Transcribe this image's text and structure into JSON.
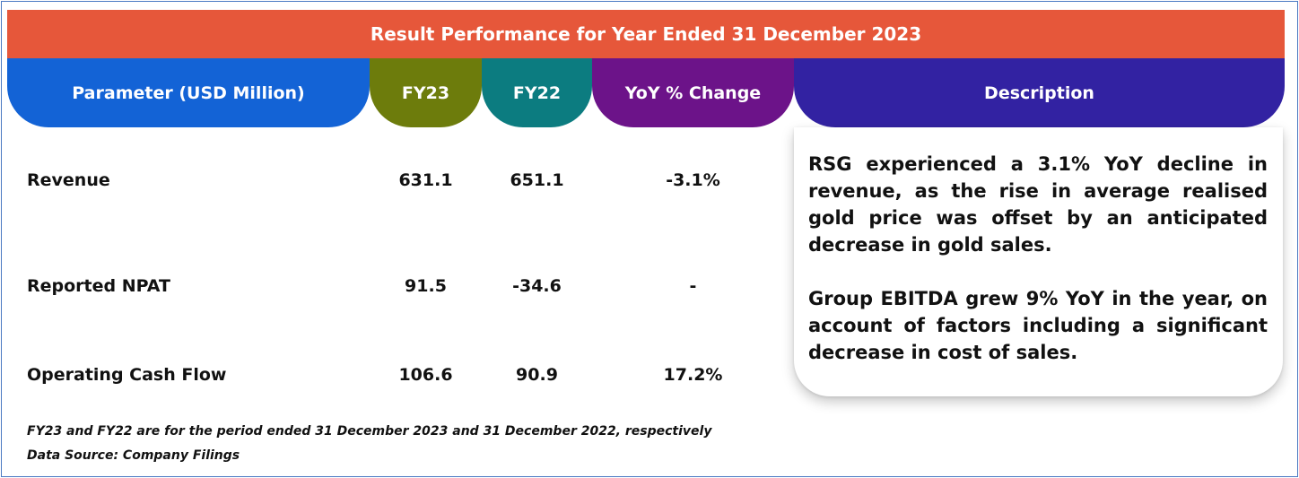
{
  "title": "Result Performance for Year Ended 31 December 2023",
  "headers": {
    "parameter": "Parameter (USD Million)",
    "fy23": "FY23",
    "fy22": "FY22",
    "yoy": "YoY % Change",
    "description": "Description"
  },
  "rows": [
    {
      "label": "Revenue",
      "fy23": "631.1",
      "fy22": "651.1",
      "yoy": "-3.1%"
    },
    {
      "label": "Reported NPAT",
      "fy23": "91.5",
      "fy22": "-34.6",
      "yoy": "-"
    },
    {
      "label": "Operating Cash Flow",
      "fy23": "106.6",
      "fy22": "90.9",
      "yoy": "17.2%"
    }
  ],
  "description": {
    "paragraph1": "RSG experienced a 3.1% YoY decline in revenue, as the rise in average realised gold price was offset by an anticipated decrease in gold sales.",
    "paragraph2": "Group EBITDA grew 9% YoY in the year, on account of factors including a significant decrease in cost of sales."
  },
  "footnotes": {
    "period_note": "FY23 and FY22 are for the period ended 31 December 2023 and 31 December 2022, respectively",
    "source": "Data Source: Company Filings"
  },
  "colors": {
    "banner": "#e6573a",
    "parameter_header": "#1363d6",
    "fy23_header": "#6d7c0c",
    "fy22_header": "#0c7c80",
    "yoy_header": "#6c1389",
    "description_header": "#3222a2",
    "frame_border": "#4a79c2"
  }
}
